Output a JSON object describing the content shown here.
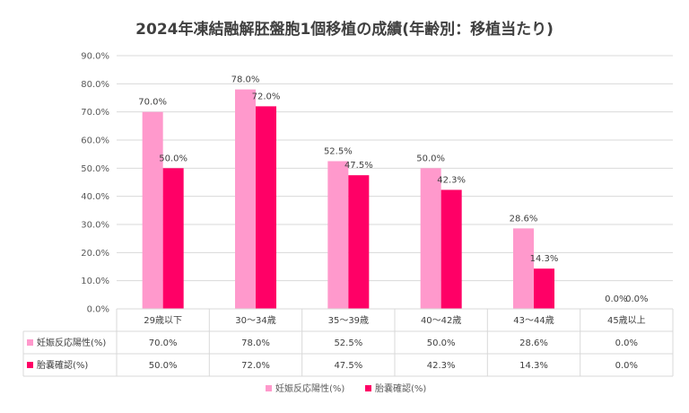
{
  "chart_data": {
    "type": "bar",
    "title": "2024年凍結融解胚盤胞1個移植の成績(年齢別：移植当たり)",
    "categories": [
      "29歳以下",
      "30～34歳",
      "35～39歳",
      "40～42歳",
      "43～44歳",
      "45歳以上"
    ],
    "series": [
      {
        "name": "妊娠反応陽性(%)",
        "color": "#ff99cc",
        "values": [
          70.0,
          78.0,
          52.5,
          50.0,
          28.6,
          0.0
        ],
        "labels": [
          "70.0%",
          "78.0%",
          "52.5%",
          "50.0%",
          "28.6%",
          "0.0%"
        ]
      },
      {
        "name": "胎嚢確認(%)",
        "color": "#ff0066",
        "values": [
          50.0,
          72.0,
          47.5,
          42.3,
          14.3,
          0.0
        ],
        "labels": [
          "50.0%",
          "72.0%",
          "47.5%",
          "42.3%",
          "14.3%",
          "0.0%"
        ]
      }
    ],
    "ylim": [
      0,
      90
    ],
    "yticks": [
      "0.0%",
      "10.0%",
      "20.0%",
      "30.0%",
      "40.0%",
      "50.0%",
      "60.0%",
      "70.0%",
      "80.0%",
      "90.0%"
    ],
    "grid": true,
    "legend": "bottom",
    "data_table": true
  }
}
